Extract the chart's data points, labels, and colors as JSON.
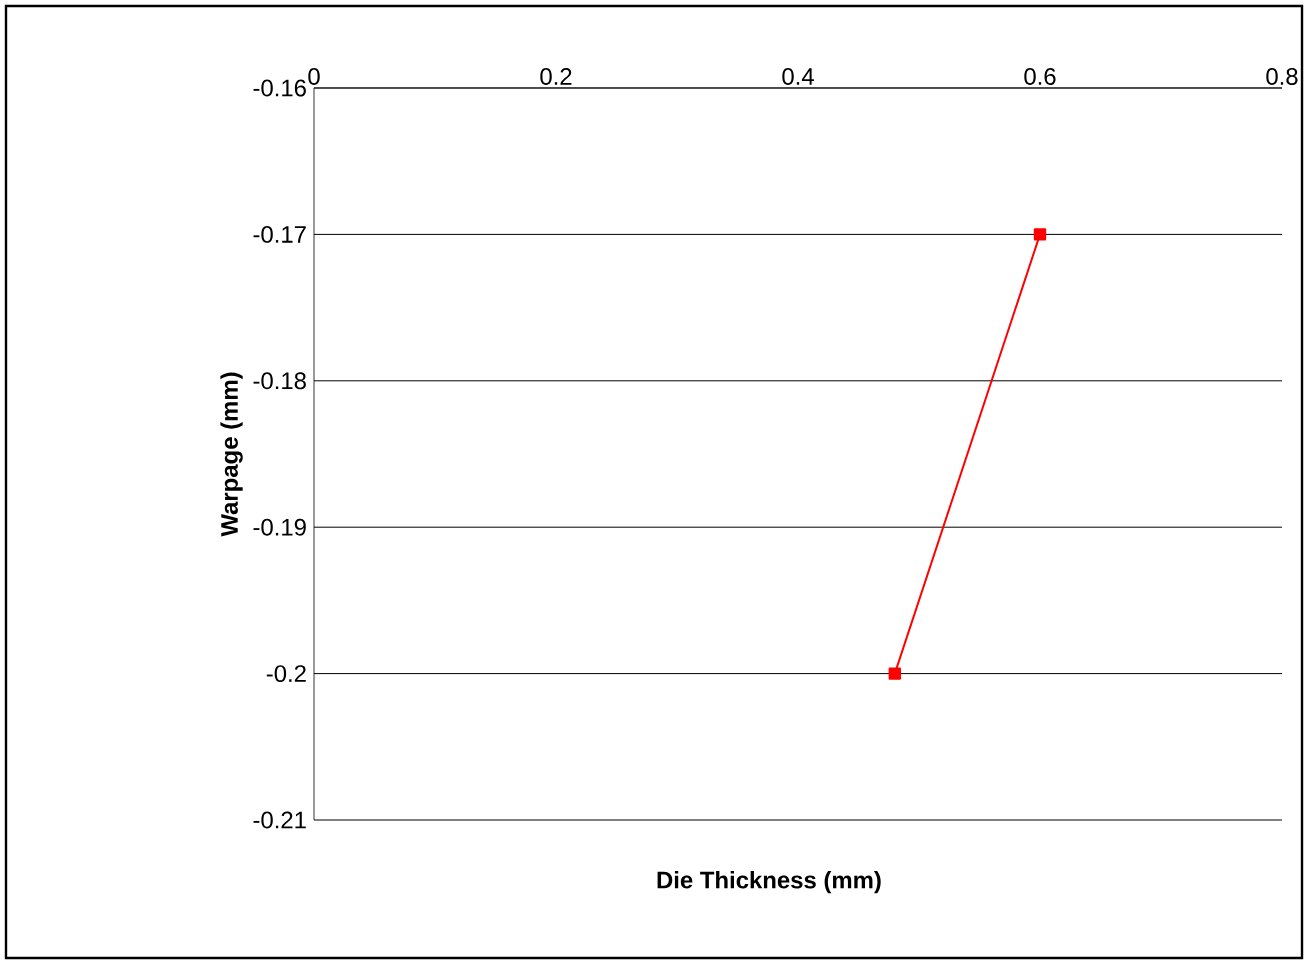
{
  "chart_data": {
    "type": "line",
    "xlabel": "Die Thickness (mm)",
    "ylabel": "Warpage (mm)",
    "x": [
      0.48,
      0.6
    ],
    "series": [
      {
        "color": "#ff0000",
        "values": [
          -0.2,
          -0.17
        ]
      }
    ],
    "xlim": [
      0,
      0.8
    ],
    "xticks": [
      0,
      0.2,
      0.4,
      0.6,
      0.8
    ],
    "ylim": [
      -0.21,
      -0.16
    ],
    "yticks": [
      -0.21,
      -0.2,
      -0.19,
      -0.18,
      -0.17,
      -0.16
    ],
    "grid": "y",
    "marker": "square",
    "line_style": "solid"
  }
}
